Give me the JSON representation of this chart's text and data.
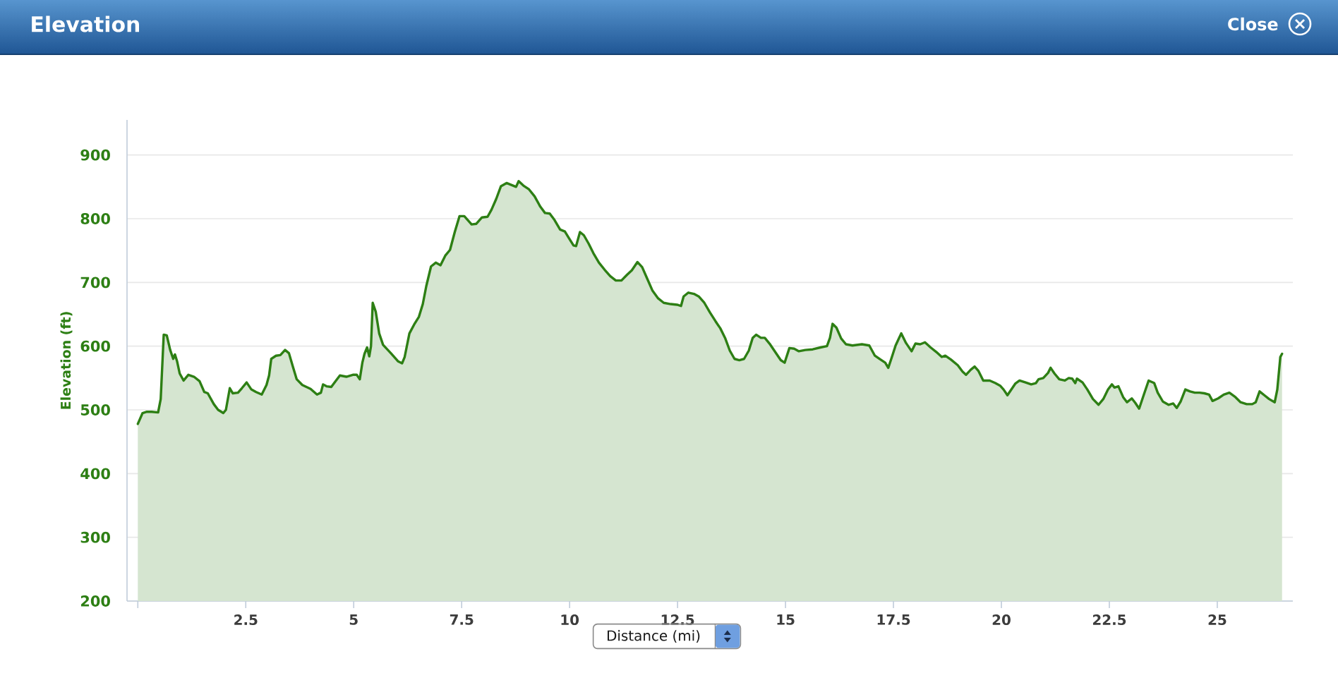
{
  "chart_data": {
    "type": "area",
    "title": "Elevation",
    "xlabel": "Distance (mi)",
    "ylabel": "Elevation (ft)",
    "annotations": [
      "Close"
    ],
    "color": "#2d7f14",
    "line_style": "solid",
    "grid": "y",
    "xlim": [
      -0.25,
      26.75
    ],
    "ylim": [
      200,
      955
    ],
    "xticks": [
      {
        "value": 0,
        "label": null
      },
      2.5,
      5,
      7.5,
      10,
      12.5,
      15,
      17.5,
      20,
      22.5,
      25
    ],
    "yticks": [
      200,
      300,
      400,
      500,
      600,
      700,
      800,
      900
    ],
    "x": [
      0,
      0.11,
      0.21,
      0.32,
      0.47,
      0.53,
      0.6,
      0.67,
      0.75,
      0.82,
      0.86,
      0.91,
      0.97,
      1.06,
      1.17,
      1.3,
      1.43,
      1.54,
      1.62,
      1.76,
      1.86,
      1.98,
      2.04,
      2.13,
      2.2,
      2.32,
      2.41,
      2.52,
      2.63,
      2.74,
      2.87,
      2.98,
      3.04,
      3.09,
      3.2,
      3.3,
      3.41,
      3.5,
      3.59,
      3.68,
      3.81,
      4.0,
      4.15,
      4.24,
      4.29,
      4.37,
      4.48,
      4.59,
      4.68,
      4.83,
      4.98,
      5.07,
      5.14,
      5.2,
      5.25,
      5.31,
      5.36,
      5.4,
      5.44,
      5.51,
      5.59,
      5.68,
      5.86,
      6.03,
      6.12,
      6.18,
      6.29,
      6.4,
      6.51,
      6.6,
      6.68,
      6.79,
      6.9,
      7.01,
      7.12,
      7.23,
      7.34,
      7.45,
      7.56,
      7.64,
      7.73,
      7.84,
      7.97,
      8.1,
      8.19,
      8.3,
      8.41,
      8.54,
      8.65,
      8.76,
      8.82,
      8.93,
      9.06,
      9.19,
      9.32,
      9.43,
      9.54,
      9.65,
      9.78,
      9.89,
      9.98,
      10.09,
      10.15,
      10.24,
      10.33,
      10.44,
      10.55,
      10.68,
      10.81,
      10.94,
      11.07,
      11.2,
      11.33,
      11.44,
      11.57,
      11.68,
      11.79,
      11.92,
      12.05,
      12.18,
      12.34,
      12.49,
      12.58,
      12.64,
      12.75,
      12.88,
      12.99,
      13.12,
      13.25,
      13.38,
      13.49,
      13.6,
      13.71,
      13.82,
      13.93,
      14.04,
      14.15,
      14.24,
      14.32,
      14.43,
      14.52,
      14.63,
      14.76,
      14.89,
      14.98,
      15.09,
      15.2,
      15.31,
      15.46,
      15.63,
      15.81,
      15.96,
      16.03,
      16.09,
      16.18,
      16.29,
      16.4,
      16.55,
      16.77,
      16.94,
      17.07,
      17.2,
      17.31,
      17.38,
      17.44,
      17.55,
      17.68,
      17.79,
      17.92,
      18.01,
      18.12,
      18.23,
      18.36,
      18.49,
      18.62,
      18.7,
      18.83,
      18.99,
      19.1,
      19.18,
      19.29,
      19.38,
      19.47,
      19.58,
      19.73,
      19.86,
      19.97,
      20.05,
      20.14,
      20.23,
      20.32,
      20.42,
      20.56,
      20.69,
      20.8,
      20.86,
      20.97,
      21.08,
      21.14,
      21.23,
      21.34,
      21.47,
      21.56,
      21.64,
      21.71,
      21.75,
      21.88,
      21.99,
      22.12,
      22.25,
      22.36,
      22.47,
      22.56,
      22.62,
      22.71,
      22.82,
      22.91,
      23.02,
      23.1,
      23.19,
      23.3,
      23.41,
      23.54,
      23.62,
      23.74,
      23.87,
      23.98,
      24.06,
      24.15,
      24.26,
      24.37,
      24.48,
      24.59,
      24.7,
      24.81,
      24.89,
      25.02,
      25.15,
      25.28,
      25.42,
      25.54,
      25.68,
      25.81,
      25.89,
      25.98,
      26.09,
      26.2,
      26.33,
      26.39,
      26.46,
      26.5
    ],
    "values": [
      478,
      495,
      497,
      497,
      496,
      517,
      618,
      617,
      594,
      580,
      587,
      576,
      557,
      546,
      555,
      552,
      545,
      528,
      526,
      509,
      500,
      495,
      500,
      534,
      526,
      527,
      534,
      543,
      532,
      528,
      524,
      539,
      554,
      580,
      585,
      586,
      594,
      589,
      568,
      548,
      539,
      533,
      524,
      527,
      540,
      537,
      536,
      546,
      554,
      552,
      555,
      555,
      548,
      574,
      588,
      598,
      584,
      600,
      668,
      654,
      620,
      602,
      589,
      576,
      573,
      583,
      620,
      634,
      646,
      666,
      694,
      725,
      731,
      727,
      742,
      751,
      779,
      804,
      804,
      798,
      791,
      792,
      802,
      803,
      814,
      831,
      851,
      856,
      853,
      850,
      859,
      852,
      846,
      835,
      819,
      809,
      808,
      798,
      783,
      780,
      770,
      758,
      757,
      779,
      774,
      761,
      746,
      731,
      720,
      710,
      703,
      703,
      712,
      719,
      732,
      724,
      707,
      687,
      675,
      668,
      666,
      665,
      663,
      678,
      684,
      682,
      678,
      668,
      653,
      639,
      628,
      613,
      593,
      580,
      578,
      580,
      593,
      613,
      618,
      613,
      613,
      604,
      591,
      578,
      574,
      597,
      596,
      592,
      594,
      595,
      598,
      600,
      613,
      635,
      629,
      612,
      603,
      601,
      603,
      601,
      585,
      579,
      574,
      566,
      578,
      601,
      620,
      605,
      592,
      604,
      603,
      606,
      598,
      591,
      583,
      585,
      579,
      570,
      560,
      555,
      563,
      568,
      561,
      546,
      546,
      542,
      538,
      532,
      523,
      532,
      541,
      546,
      543,
      540,
      542,
      548,
      550,
      558,
      566,
      557,
      548,
      546,
      550,
      549,
      542,
      549,
      543,
      532,
      517,
      508,
      517,
      532,
      540,
      535,
      537,
      520,
      512,
      518,
      511,
      502,
      524,
      546,
      542,
      527,
      513,
      508,
      510,
      503,
      513,
      532,
      529,
      527,
      527,
      526,
      524,
      514,
      518,
      524,
      527,
      520,
      512,
      509,
      509,
      512,
      529,
      523,
      517,
      512,
      532,
      583,
      588
    ]
  }
}
